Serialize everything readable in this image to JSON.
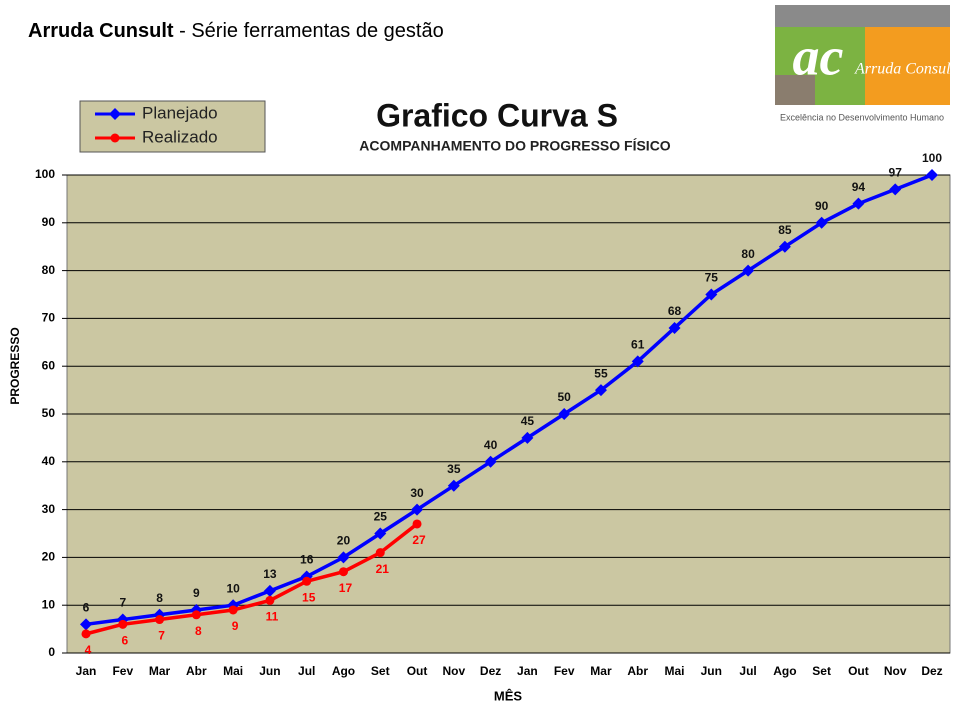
{
  "header": {
    "brand": "Arruda Cunsult",
    "subtitle": " - Série ferramentas de gestão"
  },
  "logo": {
    "mark": "ac",
    "name": "Arruda Consult",
    "tagline": "Excelência no Desenvolvimento Humano"
  },
  "chart_data": {
    "type": "line",
    "title": "Grafico Curva S",
    "subtitle": "ACOMPANHAMENTO  DO PROGRESSO FÍSICO",
    "x_label": "MÊS",
    "y_label": "PROGRESSO",
    "categories": [
      "Jan",
      "Fev",
      "Mar",
      "Abr",
      "Mai",
      "Jun",
      "Jul",
      "Ago",
      "Set",
      "Out",
      "Nov",
      "Dez",
      "Jan",
      "Fev",
      "Mar",
      "Abr",
      "Mai",
      "Jun",
      "Jul",
      "Ago",
      "Set",
      "Out",
      "Nov",
      "Dez"
    ],
    "series": [
      {
        "name": "Planejado",
        "color": "#0000ff",
        "values": [
          6,
          7,
          8,
          9,
          10,
          13,
          16,
          20,
          25,
          30,
          35,
          40,
          45,
          50,
          55,
          61,
          68,
          75,
          80,
          85,
          90,
          94,
          97,
          100
        ]
      },
      {
        "name": "Realizado",
        "color": "#ff0000",
        "values": [
          4,
          6,
          7,
          8,
          9,
          11,
          15,
          17,
          21,
          27,
          null,
          null,
          null,
          null,
          null,
          null,
          null,
          null,
          null,
          null,
          null,
          null,
          null,
          null
        ]
      }
    ],
    "ylim": [
      0,
      100
    ],
    "yticks": [
      0,
      10,
      20,
      30,
      40,
      50,
      60,
      70,
      80,
      90,
      100
    ],
    "grid": true,
    "legend": "top-left"
  }
}
